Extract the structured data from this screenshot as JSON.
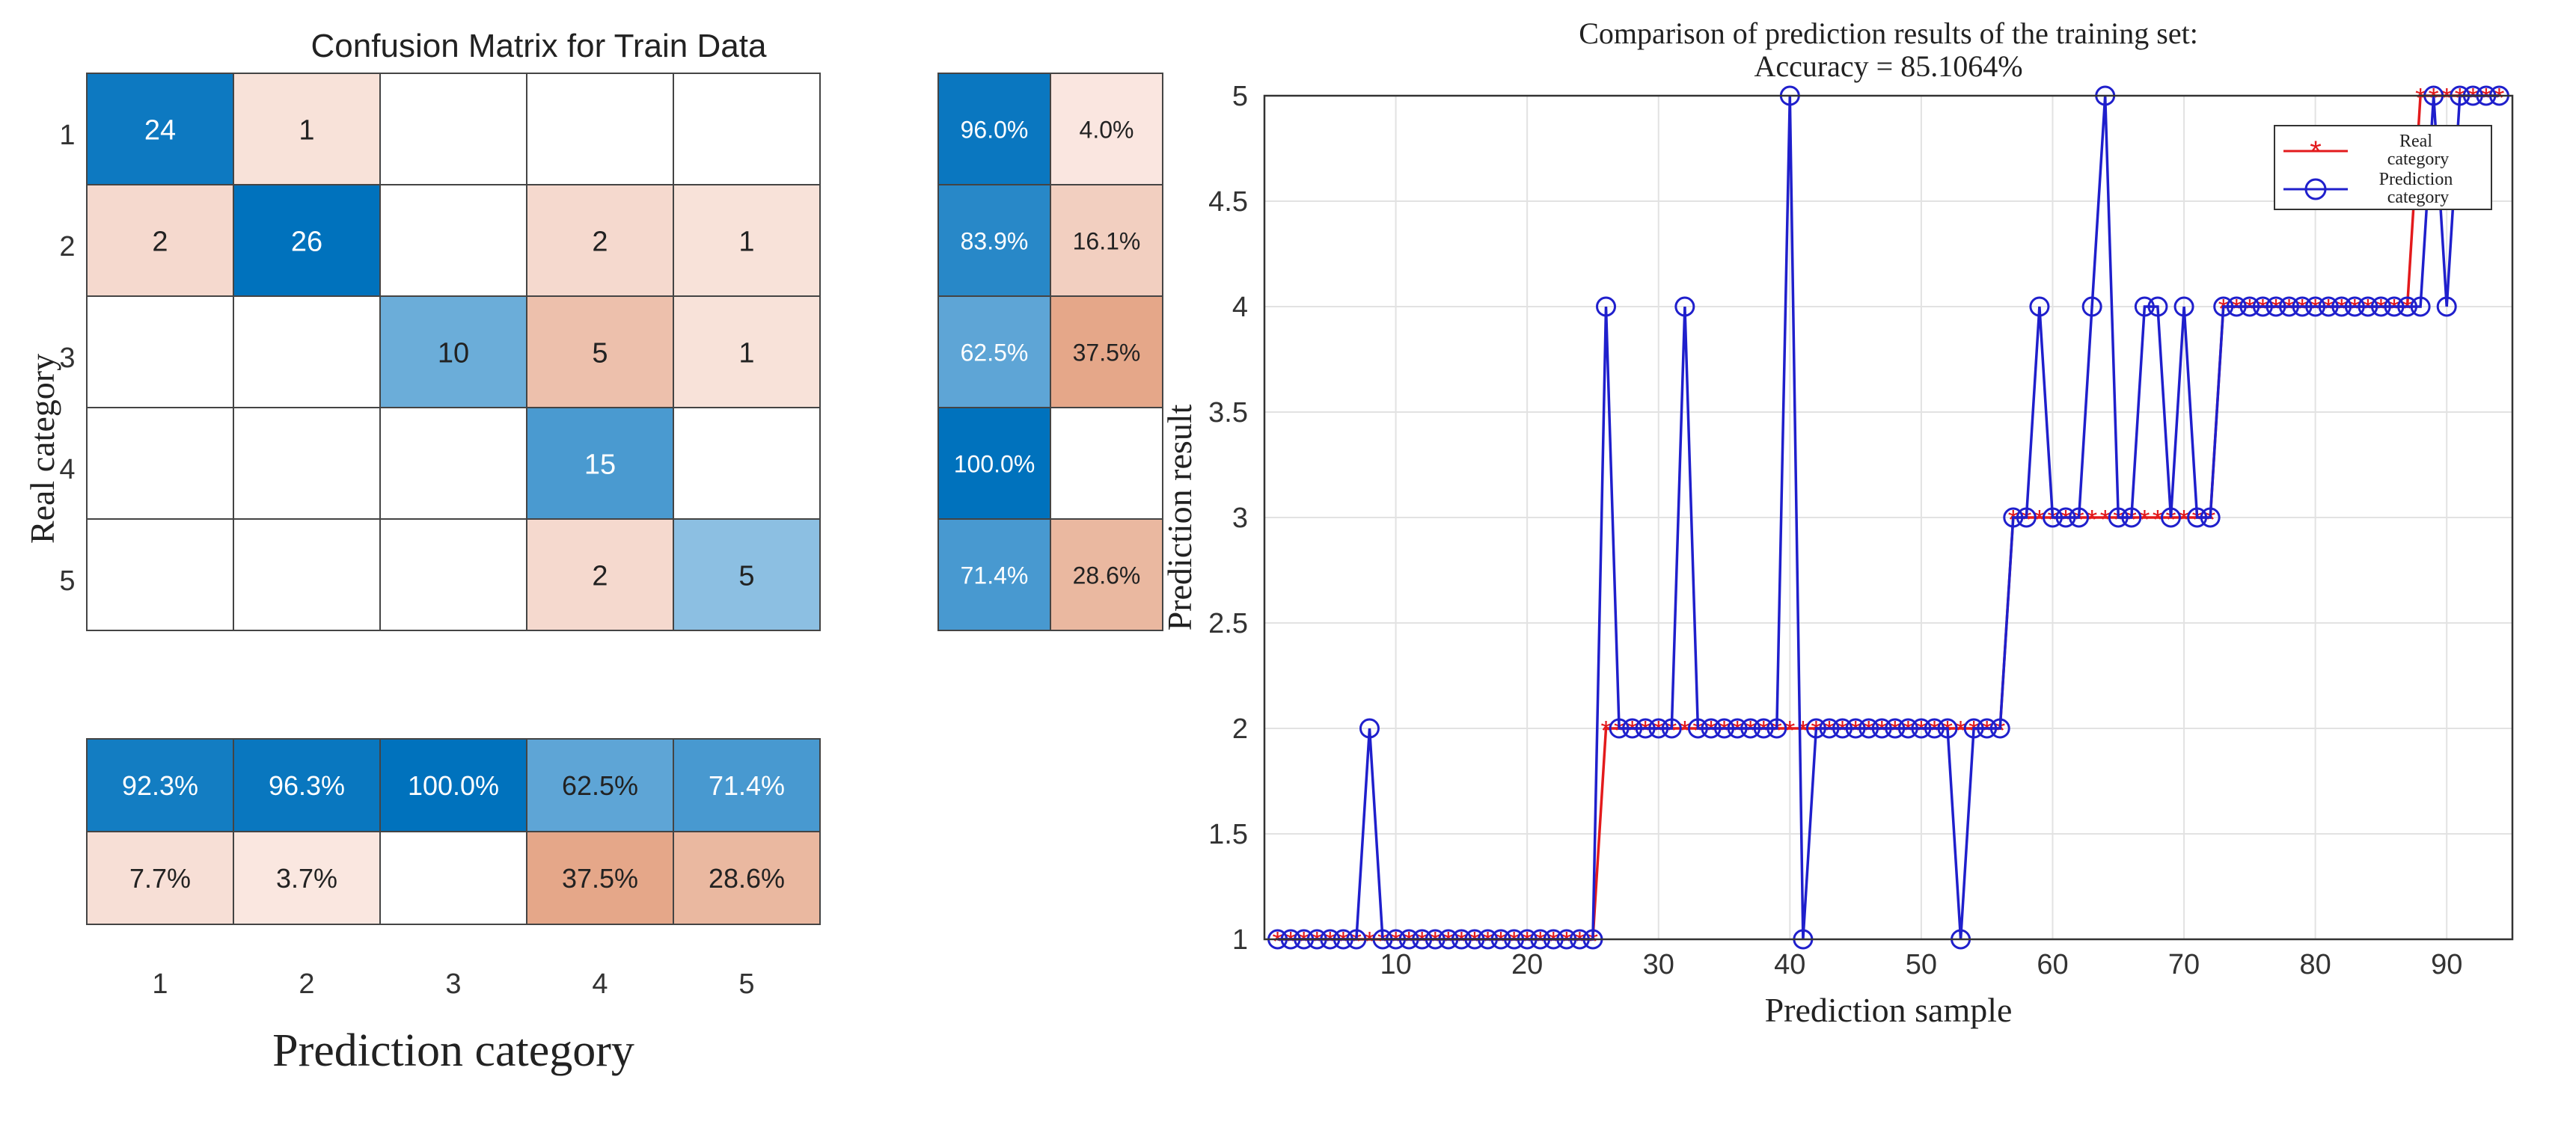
{
  "confusion_panel": {
    "title": "Confusion Matrix for Train Data",
    "ylabel": "Real category",
    "xlabel": "Prediction category",
    "row_labels": [
      "1",
      "2",
      "3",
      "4",
      "5"
    ],
    "col_labels": [
      "1",
      "2",
      "3",
      "4",
      "5"
    ]
  },
  "colors": {
    "blue_dark": "#0072BD",
    "blue_light": "#D4E6F5",
    "salmon_light": "#FCEEEA",
    "salmon_dark": "#E3A282",
    "grid_line": "#444444",
    "real_line": "#E31A1C",
    "pred_line": "#1F1FCC"
  },
  "chart_data": [
    {
      "type": "heatmap",
      "title": "Confusion Matrix for Train Data",
      "xlabel": "Prediction category",
      "ylabel": "Real category",
      "rows": [
        "1",
        "2",
        "3",
        "4",
        "5"
      ],
      "cols": [
        "1",
        "2",
        "3",
        "4",
        "5"
      ],
      "matrix": [
        [
          24,
          1,
          0,
          0,
          0
        ],
        [
          2,
          26,
          0,
          2,
          1
        ],
        [
          0,
          0,
          10,
          5,
          1
        ],
        [
          0,
          0,
          0,
          15,
          0
        ],
        [
          0,
          0,
          0,
          2,
          5
        ]
      ],
      "row_summary": [
        [
          "96.0%",
          "4.0%"
        ],
        [
          "83.9%",
          "16.1%"
        ],
        [
          "62.5%",
          "37.5%"
        ],
        [
          "100.0%",
          ""
        ],
        [
          "71.4%",
          "28.6%"
        ]
      ],
      "column_summary": [
        [
          "92.3%",
          "96.3%",
          "100.0%",
          "62.5%",
          "71.4%"
        ],
        [
          "7.7%",
          "3.7%",
          "",
          "37.5%",
          "28.6%"
        ]
      ]
    },
    {
      "type": "line",
      "title": "Comparison of prediction results of the training set:",
      "subtitle": "Accuracy = 85.1064%",
      "xlabel": "Prediction sample",
      "ylabel": "Prediction result",
      "xlim": [
        0,
        95
      ],
      "ylim": [
        1,
        5
      ],
      "xticks": [
        10,
        20,
        30,
        40,
        50,
        60,
        70,
        80,
        90
      ],
      "yticks": [
        1,
        1.5,
        2,
        2.5,
        3,
        3.5,
        4,
        4.5,
        5
      ],
      "grid": true,
      "legend_position": "top-right",
      "series": [
        {
          "name": "Real category",
          "marker": "asterisk",
          "values": [
            1,
            1,
            1,
            1,
            1,
            1,
            1,
            1,
            1,
            1,
            1,
            1,
            1,
            1,
            1,
            1,
            1,
            1,
            1,
            1,
            1,
            1,
            1,
            1,
            1,
            2,
            2,
            2,
            2,
            2,
            2,
            2,
            2,
            2,
            2,
            2,
            2,
            2,
            2,
            2,
            2,
            2,
            2,
            2,
            2,
            2,
            2,
            2,
            2,
            2,
            2,
            2,
            2,
            2,
            2,
            2,
            3,
            3,
            3,
            3,
            3,
            3,
            3,
            3,
            3,
            3,
            3,
            3,
            3,
            3,
            3,
            3,
            4,
            4,
            4,
            4,
            4,
            4,
            4,
            4,
            4,
            4,
            4,
            4,
            4,
            4,
            4,
            5,
            5,
            5,
            5,
            5,
            5,
            5
          ]
        },
        {
          "name": "Prediction category",
          "marker": "circle",
          "values": [
            1,
            1,
            1,
            1,
            1,
            1,
            1,
            2,
            1,
            1,
            1,
            1,
            1,
            1,
            1,
            1,
            1,
            1,
            1,
            1,
            1,
            1,
            1,
            1,
            1,
            4,
            2,
            2,
            2,
            2,
            2,
            4,
            2,
            2,
            2,
            2,
            2,
            2,
            2,
            5,
            1,
            2,
            2,
            2,
            2,
            2,
            2,
            2,
            2,
            2,
            2,
            2,
            1,
            2,
            2,
            2,
            3,
            3,
            4,
            3,
            3,
            3,
            4,
            5,
            3,
            3,
            4,
            4,
            3,
            4,
            3,
            3,
            4,
            4,
            4,
            4,
            4,
            4,
            4,
            4,
            4,
            4,
            4,
            4,
            4,
            4,
            4,
            4,
            5,
            4,
            5,
            5,
            5,
            5
          ]
        }
      ]
    }
  ]
}
